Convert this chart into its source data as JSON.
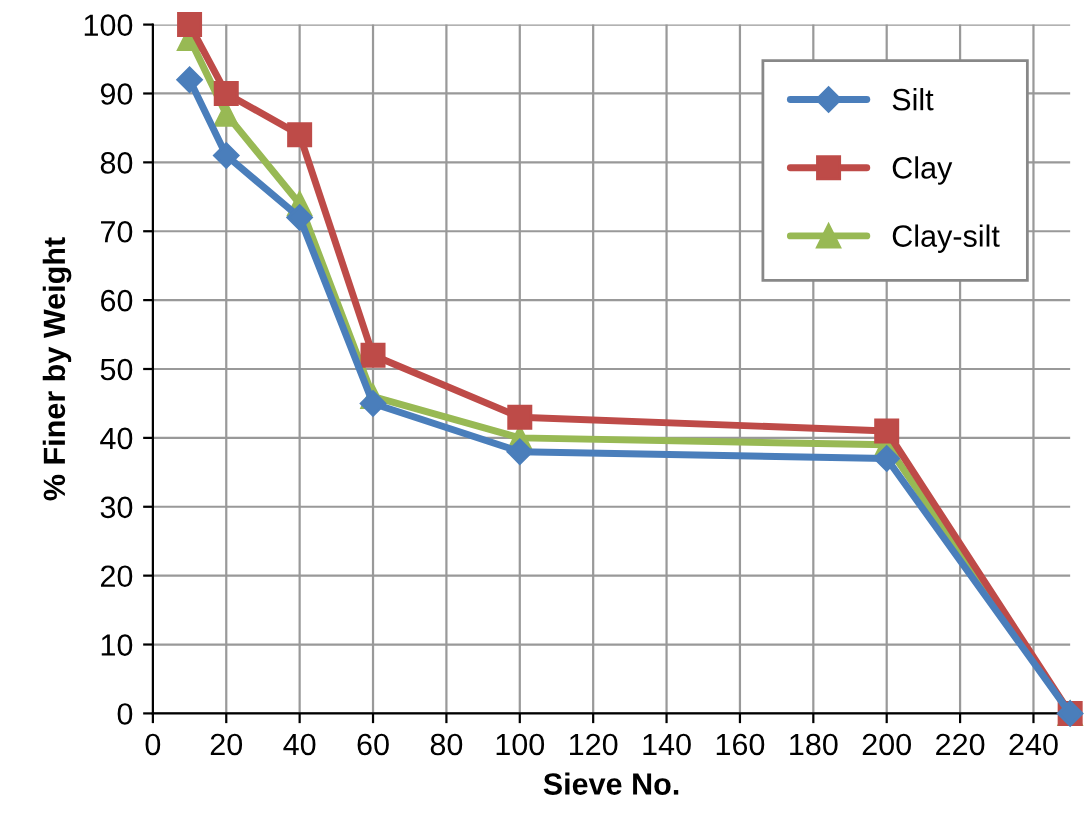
{
  "chart_data": {
    "type": "line",
    "xlabel": "Sieve No.",
    "ylabel": "% Finer by Weight",
    "x": [
      10,
      20,
      40,
      60,
      100,
      200,
      250
    ],
    "series": [
      {
        "name": "Silt",
        "color": "#4a7ebb",
        "marker": "diamond",
        "values": [
          92,
          81,
          72,
          45,
          38,
          37,
          0
        ]
      },
      {
        "name": "Clay",
        "color": "#be4b48",
        "marker": "square",
        "values": [
          100,
          90,
          84,
          52,
          43,
          41,
          0
        ]
      },
      {
        "name": "Clay-silt",
        "color": "#98b954",
        "marker": "triangle",
        "values": [
          98,
          87,
          74,
          46,
          40,
          39,
          0
        ]
      }
    ],
    "xlim": [
      0,
      250
    ],
    "xticks": [
      0,
      20,
      40,
      60,
      80,
      100,
      120,
      140,
      160,
      180,
      200,
      220,
      240
    ],
    "ylim": [
      0,
      100
    ],
    "yticks": [
      0,
      10,
      20,
      30,
      40,
      50,
      60,
      70,
      80,
      90,
      100
    ],
    "grid": true,
    "legend": "top right",
    "line_style": "solid"
  }
}
